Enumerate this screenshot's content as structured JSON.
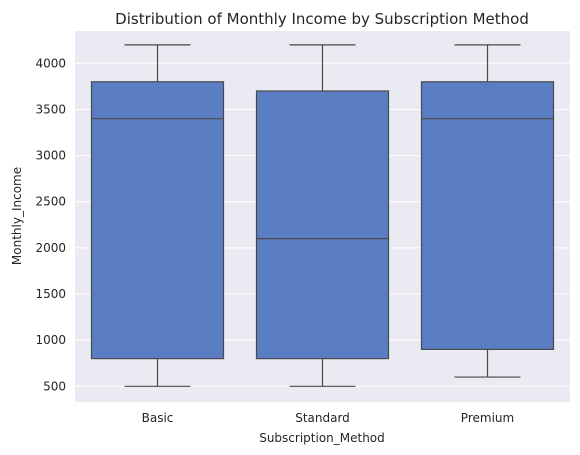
{
  "chart_data": {
    "type": "boxplot",
    "title": "Distribution of Monthly Income by Subscription Method",
    "xlabel": "Subscription_Method",
    "ylabel": "Monthly_Income",
    "ylim": [
      330,
      4350
    ],
    "yticks": [
      500,
      1000,
      1500,
      2000,
      2500,
      3000,
      3500,
      4000
    ],
    "grid": true,
    "colors": {
      "box": "#5b7dc3",
      "line": "#4a4a4a",
      "background": "#eaeaf2",
      "grid": "#ffffff"
    },
    "boxes": [
      {
        "category": "Basic",
        "whisker_low": 500,
        "q1": 800,
        "median": 3400,
        "q3": 3800,
        "whisker_high": 4200
      },
      {
        "category": "Standard",
        "whisker_low": 500,
        "q1": 800,
        "median": 2100,
        "q3": 3700,
        "whisker_high": 4200
      },
      {
        "category": "Premium",
        "whisker_low": 600,
        "q1": 900,
        "median": 3400,
        "q3": 3800,
        "whisker_high": 4200
      }
    ]
  }
}
